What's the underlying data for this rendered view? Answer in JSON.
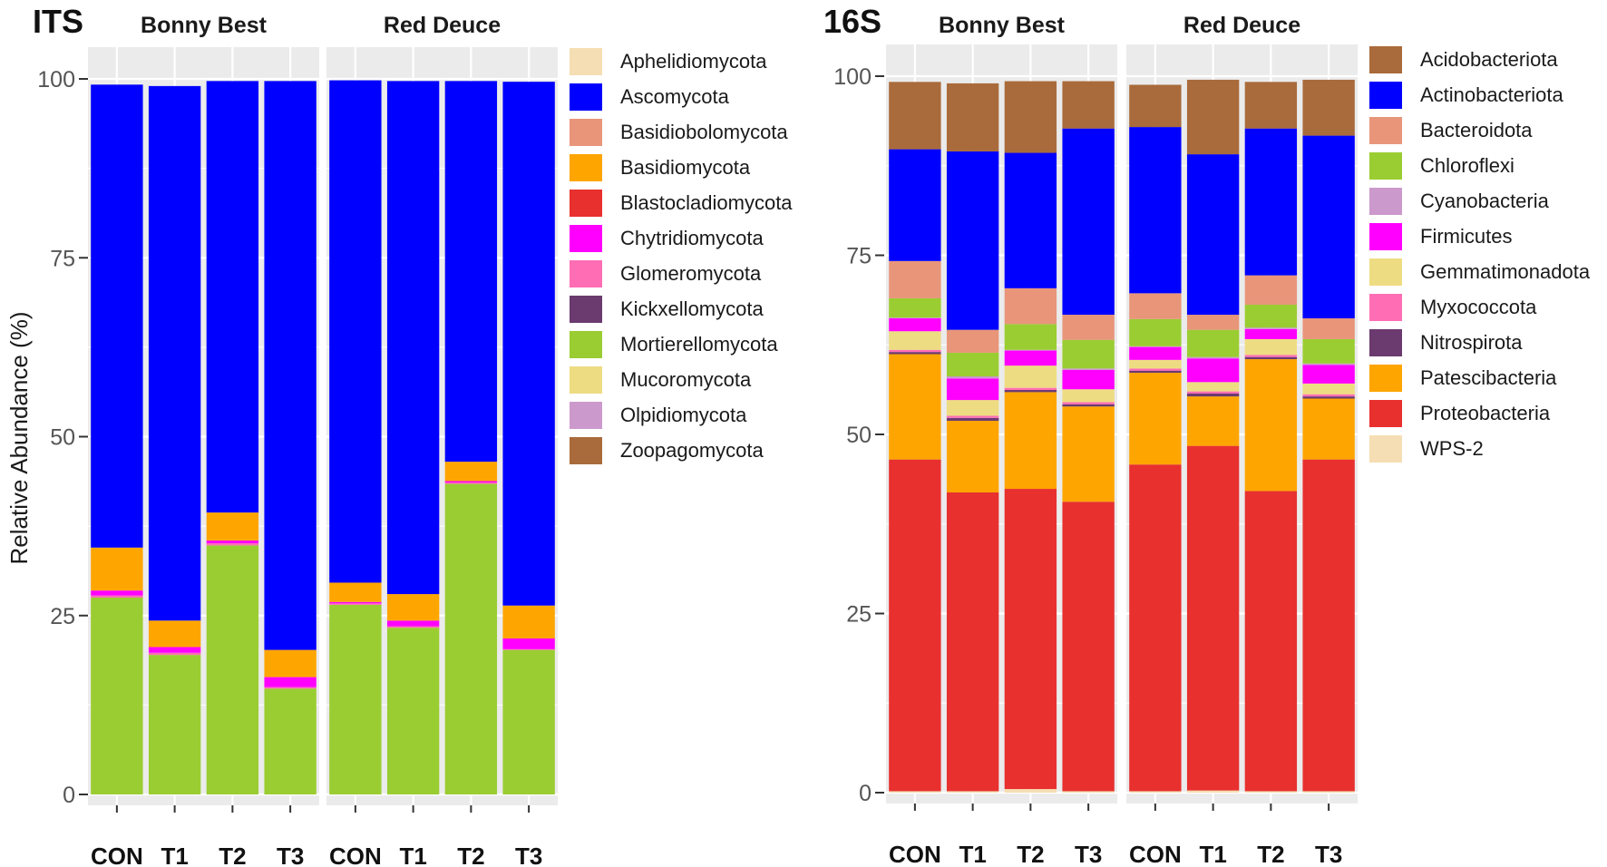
{
  "ylabel": "Relative Abundance (%)",
  "yticks": [
    "0",
    "25",
    "50",
    "75",
    "100"
  ],
  "colors": {
    "Aphelidiomycota": "#f5deb3",
    "Ascomycota": "#0000ff",
    "Basidiobolomycota": "#e8957a",
    "Basidiomycota": "#ffa500",
    "Blastocladiomycota": "#e8302f",
    "Chytridiomycota": "#ff00ff",
    "Glomeromycota": "#ff6eb4",
    "Kickxellomycota": "#6b3a6f",
    "Mortierellomycota": "#9acd32",
    "Mucoromycota": "#eedc82",
    "Olpidiomycota": "#cc99cc",
    "Zoopagomycota": "#a96b3b",
    "Acidobacteriota": "#a96b3b",
    "Actinobacteriota": "#0000ff",
    "Bacteroidota": "#e8957a",
    "Chloroflexi": "#9acd32",
    "Cyanobacteria": "#cc99cc",
    "Firmicutes": "#ff00ff",
    "Gemmatimonadota": "#eedc82",
    "Myxococcota": "#ff6eb4",
    "Nitrospirota": "#6b3a6f",
    "Patescibacteria": "#ffa500",
    "Proteobacteria": "#e8302f",
    "WPS-2": "#f5deb3"
  },
  "chart_data": [
    {
      "type": "bar",
      "stacked": true,
      "title": "ITS",
      "ylabel": "Relative Abundance (%)",
      "ylim": [
        0,
        100
      ],
      "legend": [
        "Aphelidiomycota",
        "Ascomycota",
        "Basidiobolomycota",
        "Basidiomycota",
        "Blastocladiomycota",
        "Chytridiomycota",
        "Glomeromycota",
        "Kickxellomycota",
        "Mortierellomycota",
        "Mucoromycota",
        "Olpidiomycota",
        "Zoopagomycota"
      ],
      "stack_order": [
        "Mortierellomycota",
        "Glomeromycota",
        "Chytridiomycota",
        "Basidiomycota",
        "Ascomycota"
      ],
      "facets": [
        {
          "title": "Bonny Best",
          "categories": [
            "CON",
            "T1",
            "T2",
            "T3"
          ],
          "series": [
            {
              "name": "Mortierellomycota",
              "values": [
                27.5,
                19.5,
                34.8,
                14.8
              ]
            },
            {
              "name": "Glomeromycota",
              "values": [
                0.3,
                0.3,
                0.3,
                0.2
              ]
            },
            {
              "name": "Chytridiomycota",
              "values": [
                0.7,
                0.8,
                0.4,
                1.4
              ]
            },
            {
              "name": "Basidiomycota",
              "values": [
                6.0,
                3.7,
                3.9,
                3.8
              ]
            },
            {
              "name": "Ascomycota",
              "values": [
                64.7,
                74.7,
                60.3,
                79.5
              ]
            }
          ]
        },
        {
          "title": "Red Deuce",
          "categories": [
            "CON",
            "T1",
            "T2",
            "T3"
          ],
          "series": [
            {
              "name": "Mortierellomycota",
              "values": [
                26.5,
                23.3,
                43.4,
                20.2
              ]
            },
            {
              "name": "Glomeromycota",
              "values": [
                0.2,
                0.2,
                0.2,
                0.1
              ]
            },
            {
              "name": "Chytridiomycota",
              "values": [
                0.2,
                0.8,
                0.2,
                1.5
              ]
            },
            {
              "name": "Basidiomycota",
              "values": [
                2.7,
                3.7,
                2.7,
                4.6
              ]
            },
            {
              "name": "Ascomycota",
              "values": [
                70.2,
                71.7,
                53.2,
                73.2
              ]
            }
          ]
        }
      ]
    },
    {
      "type": "bar",
      "stacked": true,
      "title": "16S",
      "ylabel": "",
      "ylim": [
        0,
        100
      ],
      "legend": [
        "Acidobacteriota",
        "Actinobacteriota",
        "Bacteroidota",
        "Chloroflexi",
        "Cyanobacteria",
        "Firmicutes",
        "Gemmatimonadota",
        "Myxococcota",
        "Nitrospirota",
        "Patescibacteria",
        "Proteobacteria",
        "WPS-2"
      ],
      "stack_order": [
        "WPS-2",
        "Proteobacteria",
        "Patescibacteria",
        "Nitrospirota",
        "Myxococcota",
        "Gemmatimonadota",
        "Firmicutes",
        "Cyanobacteria",
        "Chloroflexi",
        "Bacteroidota",
        "Actinobacteriota",
        "Acidobacteriota"
      ],
      "facets": [
        {
          "title": "Bonny Best",
          "categories": [
            "CON",
            "T1",
            "T2",
            "T3"
          ],
          "series": [
            {
              "name": "WPS-2",
              "values": [
                0.2,
                0.2,
                0.5,
                0.2
              ]
            },
            {
              "name": "Proteobacteria",
              "values": [
                46.3,
                41.7,
                41.9,
                40.4
              ]
            },
            {
              "name": "Patescibacteria",
              "values": [
                14.7,
                10.0,
                13.5,
                13.3
              ]
            },
            {
              "name": "Nitrospirota",
              "values": [
                0.3,
                0.4,
                0.3,
                0.3
              ]
            },
            {
              "name": "Myxococcota",
              "values": [
                0.3,
                0.3,
                0.3,
                0.3
              ]
            },
            {
              "name": "Gemmatimonadota",
              "values": [
                2.6,
                2.2,
                3.1,
                1.8
              ]
            },
            {
              "name": "Firmicutes",
              "values": [
                1.8,
                3.0,
                2.1,
                2.7
              ]
            },
            {
              "name": "Cyanobacteria",
              "values": [
                0.1,
                0.3,
                0.1,
                0.2
              ]
            },
            {
              "name": "Chloroflexi",
              "values": [
                2.7,
                3.3,
                3.6,
                4.0
              ]
            },
            {
              "name": "Bacteroidota",
              "values": [
                5.2,
                3.2,
                5.0,
                3.5
              ]
            },
            {
              "name": "Actinobacteriota",
              "values": [
                15.6,
                24.9,
                18.9,
                26.0
              ]
            },
            {
              "name": "Acidobacteriota",
              "values": [
                9.4,
                9.5,
                10.0,
                6.6
              ]
            }
          ]
        },
        {
          "title": "Red Deuce",
          "categories": [
            "CON",
            "T1",
            "T2",
            "T3"
          ],
          "series": [
            {
              "name": "WPS-2",
              "values": [
                0.2,
                0.3,
                0.2,
                0.2
              ]
            },
            {
              "name": "Proteobacteria",
              "values": [
                45.6,
                48.1,
                41.9,
                46.3
              ]
            },
            {
              "name": "Patescibacteria",
              "values": [
                12.8,
                6.9,
                18.4,
                8.5
              ]
            },
            {
              "name": "Nitrospirota",
              "values": [
                0.3,
                0.4,
                0.3,
                0.3
              ]
            },
            {
              "name": "Myxococcota",
              "values": [
                0.3,
                0.3,
                0.3,
                0.3
              ]
            },
            {
              "name": "Gemmatimonadota",
              "values": [
                1.2,
                1.3,
                2.2,
                1.5
              ]
            },
            {
              "name": "Firmicutes",
              "values": [
                1.8,
                3.3,
                1.4,
                2.6
              ]
            },
            {
              "name": "Cyanobacteria",
              "values": [
                0.1,
                0.2,
                0.2,
                0.2
              ]
            },
            {
              "name": "Chloroflexi",
              "values": [
                3.8,
                3.8,
                3.2,
                3.4
              ]
            },
            {
              "name": "Bacteroidota",
              "values": [
                3.6,
                2.1,
                4.1,
                2.9
              ]
            },
            {
              "name": "Actinobacteriota",
              "values": [
                23.2,
                22.4,
                20.5,
                25.5
              ]
            },
            {
              "name": "Acidobacteriota",
              "values": [
                5.9,
                10.4,
                6.5,
                7.8
              ]
            }
          ]
        }
      ]
    }
  ]
}
